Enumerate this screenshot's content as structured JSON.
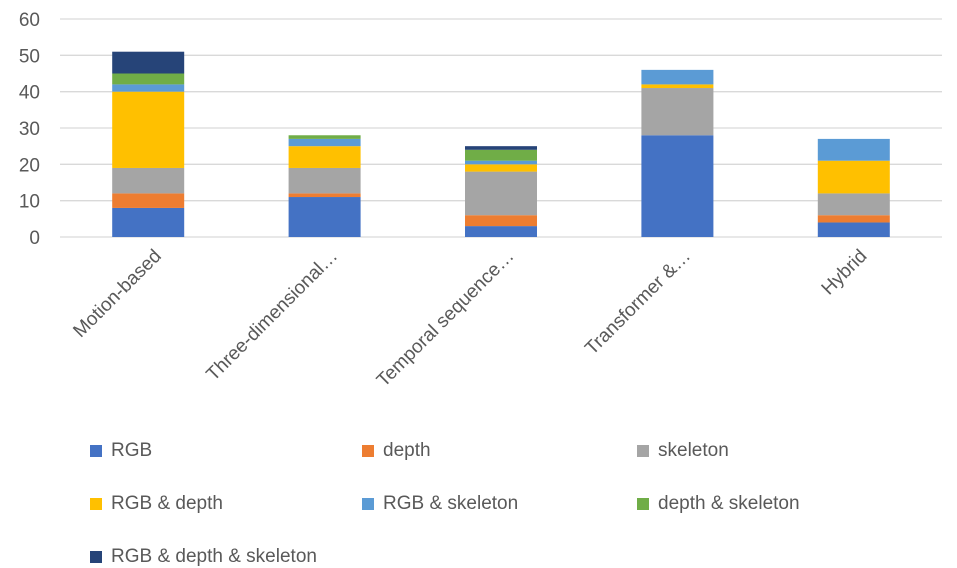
{
  "chart_data": {
    "type": "bar",
    "stacked": true,
    "title": "",
    "xlabel": "",
    "ylabel": "",
    "ylim": [
      0,
      60
    ],
    "yticks": [
      0,
      10,
      20,
      30,
      40,
      50,
      60
    ],
    "grid": true,
    "legend_position": "bottom",
    "categories": [
      "Motion-based",
      "Three-dimensional…",
      "Temporal sequence…",
      "Transformer &…",
      "Hybrid"
    ],
    "series": [
      {
        "name": "RGB",
        "color": "#4472c4",
        "values": [
          8,
          11,
          3,
          28,
          4
        ]
      },
      {
        "name": "depth",
        "color": "#ed7d31",
        "values": [
          4,
          1,
          3,
          0,
          2
        ]
      },
      {
        "name": "skeleton",
        "color": "#a5a5a5",
        "values": [
          7,
          7,
          12,
          13,
          6
        ]
      },
      {
        "name": "RGB & depth",
        "color": "#ffc000",
        "values": [
          21,
          6,
          2,
          1,
          9
        ]
      },
      {
        "name": "RGB & skeleton",
        "color": "#5b9bd5",
        "values": [
          2,
          2,
          1,
          4,
          6
        ]
      },
      {
        "name": "depth & skeleton",
        "color": "#70ad47",
        "values": [
          3,
          1,
          3,
          0,
          0
        ]
      },
      {
        "name": "RGB & depth & skeleton",
        "color": "#264478",
        "values": [
          6,
          0,
          1,
          0,
          0
        ]
      }
    ]
  }
}
